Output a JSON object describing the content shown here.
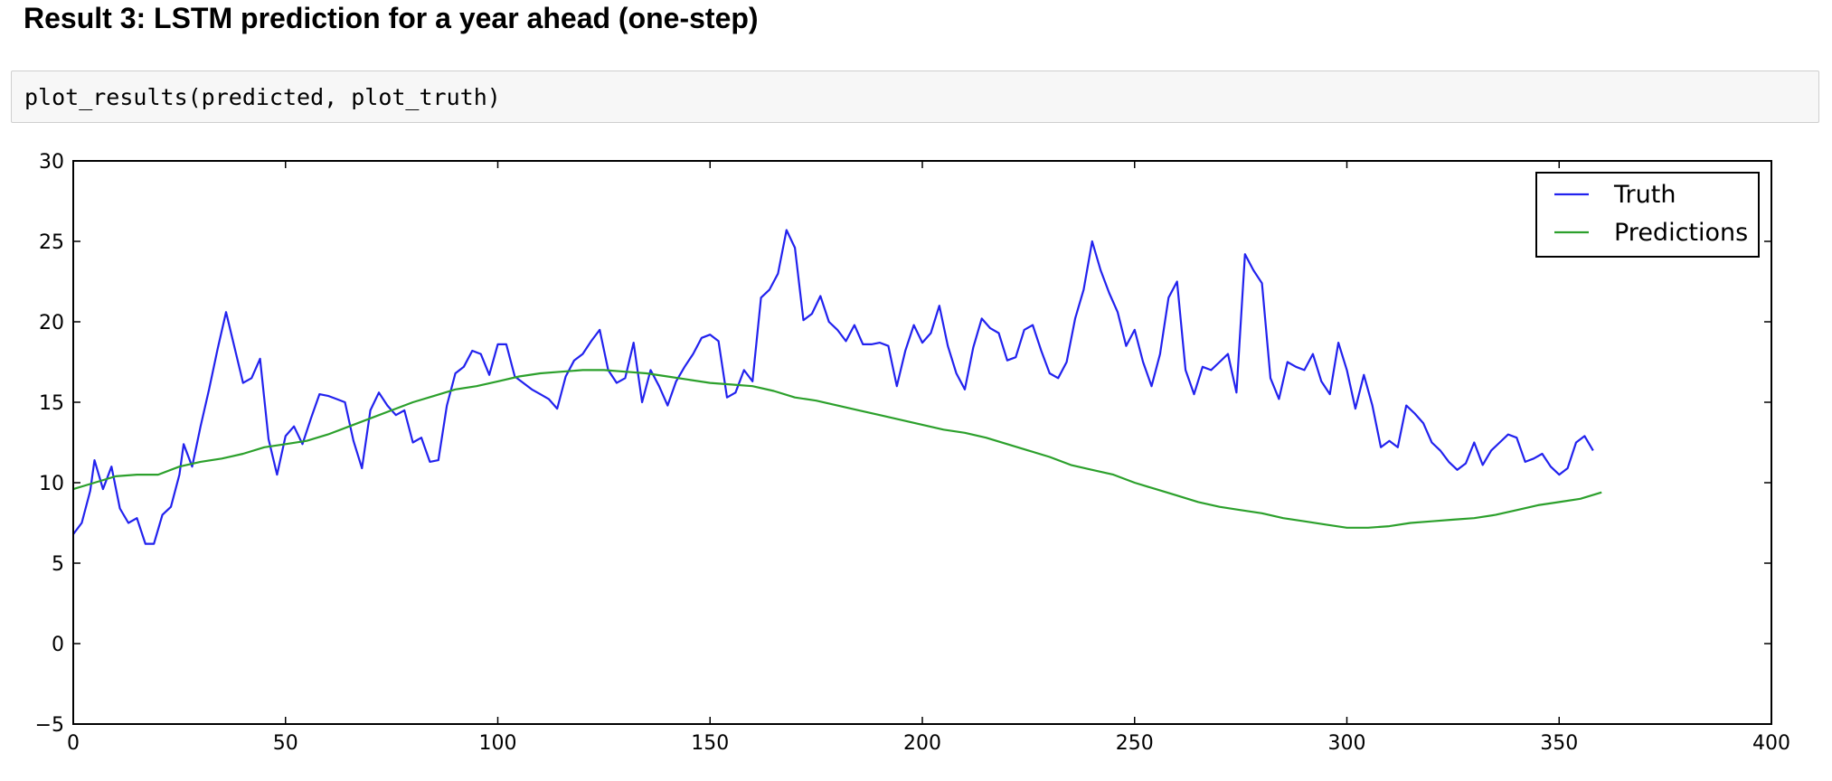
{
  "heading": "Result 3: LSTM prediction for a year ahead (one-step)",
  "code": "plot_results(predicted, plot_truth)",
  "chart_data": {
    "type": "line",
    "title": "",
    "xlabel": "",
    "ylabel": "",
    "xlim": [
      0,
      400
    ],
    "ylim": [
      -5,
      30
    ],
    "xticks": [
      0,
      50,
      100,
      150,
      200,
      250,
      300,
      350,
      400
    ],
    "yticks": [
      -5,
      0,
      5,
      10,
      15,
      20,
      25,
      30
    ],
    "grid": false,
    "legend_position": "top-right",
    "series": [
      {
        "name": "Truth",
        "color": "#2222ee",
        "points": [
          [
            0,
            6.8
          ],
          [
            2,
            7.5
          ],
          [
            4,
            9.5
          ],
          [
            5,
            11.4
          ],
          [
            7,
            9.6
          ],
          [
            9,
            11.0
          ],
          [
            11,
            8.4
          ],
          [
            13,
            7.5
          ],
          [
            15,
            7.8
          ],
          [
            17,
            6.2
          ],
          [
            19,
            6.2
          ],
          [
            21,
            8.0
          ],
          [
            23,
            8.5
          ],
          [
            25,
            10.5
          ],
          [
            26,
            12.4
          ],
          [
            28,
            11.0
          ],
          [
            30,
            13.5
          ],
          [
            32,
            15.8
          ],
          [
            34,
            18.3
          ],
          [
            36,
            20.6
          ],
          [
            38,
            18.4
          ],
          [
            40,
            16.2
          ],
          [
            42,
            16.5
          ],
          [
            44,
            17.7
          ],
          [
            46,
            12.7
          ],
          [
            48,
            10.5
          ],
          [
            50,
            12.9
          ],
          [
            52,
            13.5
          ],
          [
            54,
            12.4
          ],
          [
            56,
            14.0
          ],
          [
            58,
            15.5
          ],
          [
            60,
            15.4
          ],
          [
            62,
            15.2
          ],
          [
            64,
            15.0
          ],
          [
            66,
            12.6
          ],
          [
            68,
            10.9
          ],
          [
            70,
            14.5
          ],
          [
            72,
            15.6
          ],
          [
            74,
            14.8
          ],
          [
            76,
            14.2
          ],
          [
            78,
            14.5
          ],
          [
            80,
            12.5
          ],
          [
            82,
            12.8
          ],
          [
            84,
            11.3
          ],
          [
            86,
            11.4
          ],
          [
            88,
            14.8
          ],
          [
            90,
            16.8
          ],
          [
            92,
            17.2
          ],
          [
            94,
            18.2
          ],
          [
            96,
            18.0
          ],
          [
            98,
            16.7
          ],
          [
            100,
            18.6
          ],
          [
            102,
            18.6
          ],
          [
            104,
            16.6
          ],
          [
            106,
            16.2
          ],
          [
            108,
            15.8
          ],
          [
            110,
            15.5
          ],
          [
            112,
            15.2
          ],
          [
            114,
            14.6
          ],
          [
            116,
            16.6
          ],
          [
            118,
            17.6
          ],
          [
            120,
            18.0
          ],
          [
            122,
            18.8
          ],
          [
            124,
            19.5
          ],
          [
            126,
            17.0
          ],
          [
            128,
            16.2
          ],
          [
            130,
            16.5
          ],
          [
            132,
            18.7
          ],
          [
            134,
            15.0
          ],
          [
            136,
            17.0
          ],
          [
            138,
            16.0
          ],
          [
            140,
            14.8
          ],
          [
            142,
            16.3
          ],
          [
            144,
            17.2
          ],
          [
            146,
            18.0
          ],
          [
            148,
            19.0
          ],
          [
            150,
            19.2
          ],
          [
            152,
            18.8
          ],
          [
            154,
            15.3
          ],
          [
            156,
            15.6
          ],
          [
            158,
            17.0
          ],
          [
            160,
            16.3
          ],
          [
            162,
            21.5
          ],
          [
            164,
            22.0
          ],
          [
            166,
            23.0
          ],
          [
            168,
            25.7
          ],
          [
            170,
            24.6
          ],
          [
            172,
            20.1
          ],
          [
            174,
            20.5
          ],
          [
            176,
            21.6
          ],
          [
            178,
            20.0
          ],
          [
            180,
            19.5
          ],
          [
            182,
            18.8
          ],
          [
            184,
            19.8
          ],
          [
            186,
            18.6
          ],
          [
            188,
            18.6
          ],
          [
            190,
            18.7
          ],
          [
            192,
            18.5
          ],
          [
            194,
            16.0
          ],
          [
            196,
            18.2
          ],
          [
            198,
            19.8
          ],
          [
            200,
            18.7
          ],
          [
            202,
            19.3
          ],
          [
            204,
            21.0
          ],
          [
            206,
            18.5
          ],
          [
            208,
            16.8
          ],
          [
            210,
            15.8
          ],
          [
            212,
            18.4
          ],
          [
            214,
            20.2
          ],
          [
            216,
            19.6
          ],
          [
            218,
            19.3
          ],
          [
            220,
            17.6
          ],
          [
            222,
            17.8
          ],
          [
            224,
            19.5
          ],
          [
            226,
            19.8
          ],
          [
            228,
            18.2
          ],
          [
            230,
            16.8
          ],
          [
            232,
            16.5
          ],
          [
            234,
            17.5
          ],
          [
            236,
            20.2
          ],
          [
            238,
            22.0
          ],
          [
            240,
            25.0
          ],
          [
            242,
            23.2
          ],
          [
            244,
            21.8
          ],
          [
            246,
            20.6
          ],
          [
            248,
            18.5
          ],
          [
            250,
            19.5
          ],
          [
            252,
            17.5
          ],
          [
            254,
            16.0
          ],
          [
            256,
            18.0
          ],
          [
            258,
            21.5
          ],
          [
            260,
            22.5
          ],
          [
            262,
            17.0
          ],
          [
            264,
            15.5
          ],
          [
            266,
            17.2
          ],
          [
            268,
            17.0
          ],
          [
            270,
            17.5
          ],
          [
            272,
            18.0
          ],
          [
            274,
            15.6
          ],
          [
            276,
            24.2
          ],
          [
            278,
            23.2
          ],
          [
            280,
            22.4
          ],
          [
            282,
            16.5
          ],
          [
            284,
            15.2
          ],
          [
            286,
            17.5
          ],
          [
            288,
            17.2
          ],
          [
            290,
            17.0
          ],
          [
            292,
            18.0
          ],
          [
            294,
            16.3
          ],
          [
            296,
            15.5
          ],
          [
            298,
            18.7
          ],
          [
            300,
            17.0
          ],
          [
            302,
            14.6
          ],
          [
            304,
            16.7
          ],
          [
            306,
            14.8
          ],
          [
            308,
            12.2
          ],
          [
            310,
            12.6
          ],
          [
            312,
            12.2
          ],
          [
            314,
            14.8
          ],
          [
            316,
            14.3
          ],
          [
            318,
            13.7
          ],
          [
            320,
            12.5
          ],
          [
            322,
            12.0
          ],
          [
            324,
            11.3
          ],
          [
            326,
            10.8
          ],
          [
            328,
            11.2
          ],
          [
            330,
            12.5
          ],
          [
            332,
            11.1
          ],
          [
            334,
            12.0
          ],
          [
            336,
            12.5
          ],
          [
            338,
            13.0
          ],
          [
            340,
            12.8
          ],
          [
            342,
            11.3
          ],
          [
            344,
            11.5
          ],
          [
            346,
            11.8
          ],
          [
            348,
            11.0
          ],
          [
            350,
            10.5
          ],
          [
            352,
            10.9
          ],
          [
            354,
            12.5
          ],
          [
            356,
            12.9
          ],
          [
            358,
            12.0
          ]
        ]
      },
      {
        "name": "Predictions",
        "color": "#2ca02c",
        "points": [
          [
            0,
            9.6
          ],
          [
            5,
            10.0
          ],
          [
            10,
            10.4
          ],
          [
            15,
            10.5
          ],
          [
            20,
            10.5
          ],
          [
            25,
            11.0
          ],
          [
            30,
            11.3
          ],
          [
            35,
            11.5
          ],
          [
            40,
            11.8
          ],
          [
            45,
            12.2
          ],
          [
            50,
            12.4
          ],
          [
            55,
            12.6
          ],
          [
            60,
            13.0
          ],
          [
            65,
            13.5
          ],
          [
            70,
            14.0
          ],
          [
            75,
            14.5
          ],
          [
            80,
            15.0
          ],
          [
            85,
            15.4
          ],
          [
            90,
            15.8
          ],
          [
            95,
            16.0
          ],
          [
            100,
            16.3
          ],
          [
            105,
            16.6
          ],
          [
            110,
            16.8
          ],
          [
            115,
            16.9
          ],
          [
            120,
            17.0
          ],
          [
            125,
            17.0
          ],
          [
            130,
            16.9
          ],
          [
            135,
            16.8
          ],
          [
            140,
            16.6
          ],
          [
            145,
            16.4
          ],
          [
            150,
            16.2
          ],
          [
            155,
            16.1
          ],
          [
            160,
            16.0
          ],
          [
            165,
            15.7
          ],
          [
            170,
            15.3
          ],
          [
            175,
            15.1
          ],
          [
            180,
            14.8
          ],
          [
            185,
            14.5
          ],
          [
            190,
            14.2
          ],
          [
            195,
            13.9
          ],
          [
            200,
            13.6
          ],
          [
            205,
            13.3
          ],
          [
            210,
            13.1
          ],
          [
            215,
            12.8
          ],
          [
            220,
            12.4
          ],
          [
            225,
            12.0
          ],
          [
            230,
            11.6
          ],
          [
            235,
            11.1
          ],
          [
            240,
            10.8
          ],
          [
            245,
            10.5
          ],
          [
            250,
            10.0
          ],
          [
            255,
            9.6
          ],
          [
            260,
            9.2
          ],
          [
            265,
            8.8
          ],
          [
            270,
            8.5
          ],
          [
            275,
            8.3
          ],
          [
            280,
            8.1
          ],
          [
            285,
            7.8
          ],
          [
            290,
            7.6
          ],
          [
            295,
            7.4
          ],
          [
            300,
            7.2
          ],
          [
            305,
            7.2
          ],
          [
            310,
            7.3
          ],
          [
            315,
            7.5
          ],
          [
            320,
            7.6
          ],
          [
            325,
            7.7
          ],
          [
            330,
            7.8
          ],
          [
            335,
            8.0
          ],
          [
            340,
            8.3
          ],
          [
            345,
            8.6
          ],
          [
            350,
            8.8
          ],
          [
            355,
            9.0
          ],
          [
            360,
            9.4
          ]
        ]
      }
    ]
  }
}
